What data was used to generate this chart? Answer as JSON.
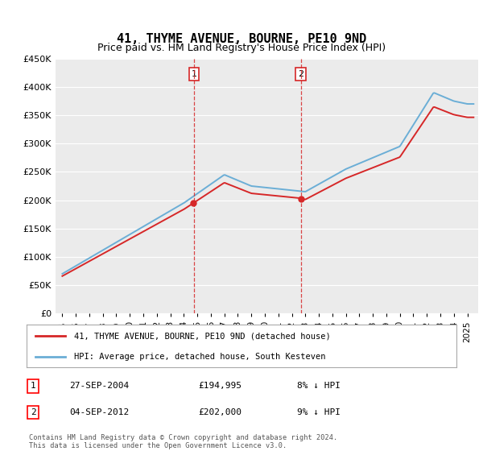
{
  "title": "41, THYME AVENUE, BOURNE, PE10 9ND",
  "subtitle": "Price paid vs. HM Land Registry's House Price Index (HPI)",
  "footer": "Contains HM Land Registry data © Crown copyright and database right 2024.\nThis data is licensed under the Open Government Licence v3.0.",
  "legend_line1": "41, THYME AVENUE, BOURNE, PE10 9ND (detached house)",
  "legend_line2": "HPI: Average price, detached house, South Kesteven",
  "transaction1_date": "27-SEP-2004",
  "transaction1_price": "£194,995",
  "transaction1_hpi": "8% ↓ HPI",
  "transaction2_date": "04-SEP-2012",
  "transaction2_price": "£202,000",
  "transaction2_hpi": "9% ↓ HPI",
  "transaction1_year": 2004.75,
  "transaction1_value": 194995,
  "transaction2_year": 2012.67,
  "transaction2_value": 202000,
  "hpi_color": "#6baed6",
  "price_color": "#d62728",
  "vline_color": "#d62728",
  "ylim_min": 0,
  "ylim_max": 450000,
  "yticks": [
    0,
    50000,
    100000,
    150000,
    200000,
    250000,
    300000,
    350000,
    400000,
    450000
  ],
  "background_color": "#ffffff",
  "plot_bg_color": "#ebebeb",
  "grid_color": "#ffffff",
  "title_fontsize": 11,
  "subtitle_fontsize": 9
}
